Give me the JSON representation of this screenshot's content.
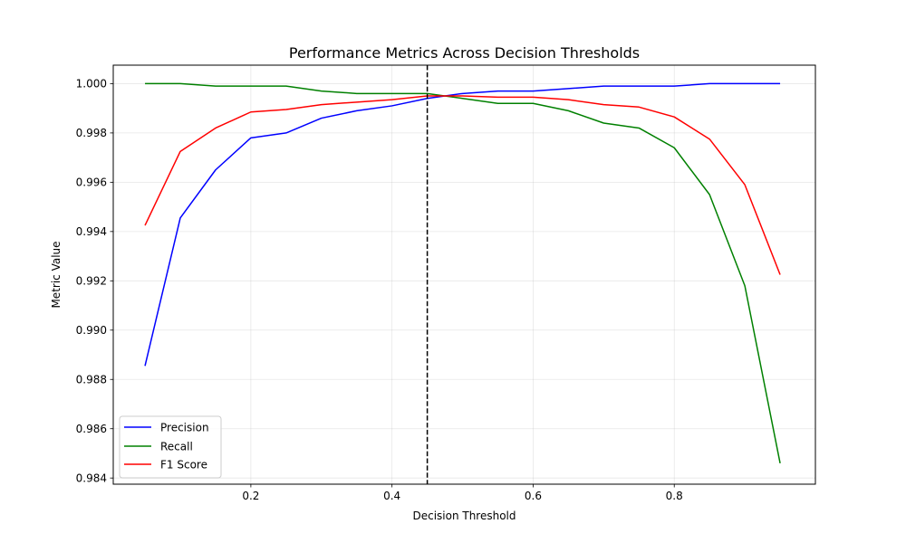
{
  "chart_data": {
    "type": "line",
    "title": "Performance Metrics Across Decision Thresholds",
    "xlabel": "Decision Threshold",
    "ylabel": "Metric Value",
    "xlim": [
      0.005,
      1.0
    ],
    "ylim": [
      0.98375,
      1.00075
    ],
    "xticks": [
      0.2,
      0.4,
      0.6,
      0.8
    ],
    "xtick_labels": [
      "0.2",
      "0.4",
      "0.6",
      "0.8"
    ],
    "yticks": [
      0.984,
      0.986,
      0.988,
      0.99,
      0.992,
      0.994,
      0.996,
      0.998,
      1.0
    ],
    "ytick_labels": [
      "0.984",
      "0.986",
      "0.988",
      "0.990",
      "0.992",
      "0.994",
      "0.996",
      "0.998",
      "1.000"
    ],
    "grid": true,
    "legend_position": "lower-left",
    "x": [
      0.05,
      0.1,
      0.15,
      0.2,
      0.25,
      0.3,
      0.35,
      0.4,
      0.45,
      0.5,
      0.55,
      0.6,
      0.65,
      0.7,
      0.75,
      0.8,
      0.85,
      0.9,
      0.95
    ],
    "series": [
      {
        "name": "Precision",
        "color": "#0000ff",
        "values": [
          0.98855,
          0.99455,
          0.9965,
          0.9978,
          0.998,
          0.9986,
          0.9989,
          0.9991,
          0.9994,
          0.9996,
          0.9997,
          0.9997,
          0.9998,
          0.9999,
          0.9999,
          0.9999,
          1.0,
          1.0,
          1.0
        ]
      },
      {
        "name": "Recall",
        "color": "#008000",
        "values": [
          1.0,
          1.0,
          0.9999,
          0.9999,
          0.9999,
          0.9997,
          0.9996,
          0.9996,
          0.9996,
          0.9994,
          0.9992,
          0.9992,
          0.9989,
          0.9984,
          0.9982,
          0.9974,
          0.9955,
          0.9918,
          0.9846
        ]
      },
      {
        "name": "F1 Score",
        "color": "#ff0000",
        "values": [
          0.99425,
          0.99725,
          0.9982,
          0.99885,
          0.99895,
          0.99915,
          0.99925,
          0.99935,
          0.9995,
          0.9995,
          0.99945,
          0.99945,
          0.99935,
          0.99915,
          0.99905,
          0.99865,
          0.99775,
          0.9959,
          0.99225
        ]
      }
    ],
    "vline": {
      "x": 0.45,
      "color": "#000000",
      "style": "dashed"
    }
  }
}
